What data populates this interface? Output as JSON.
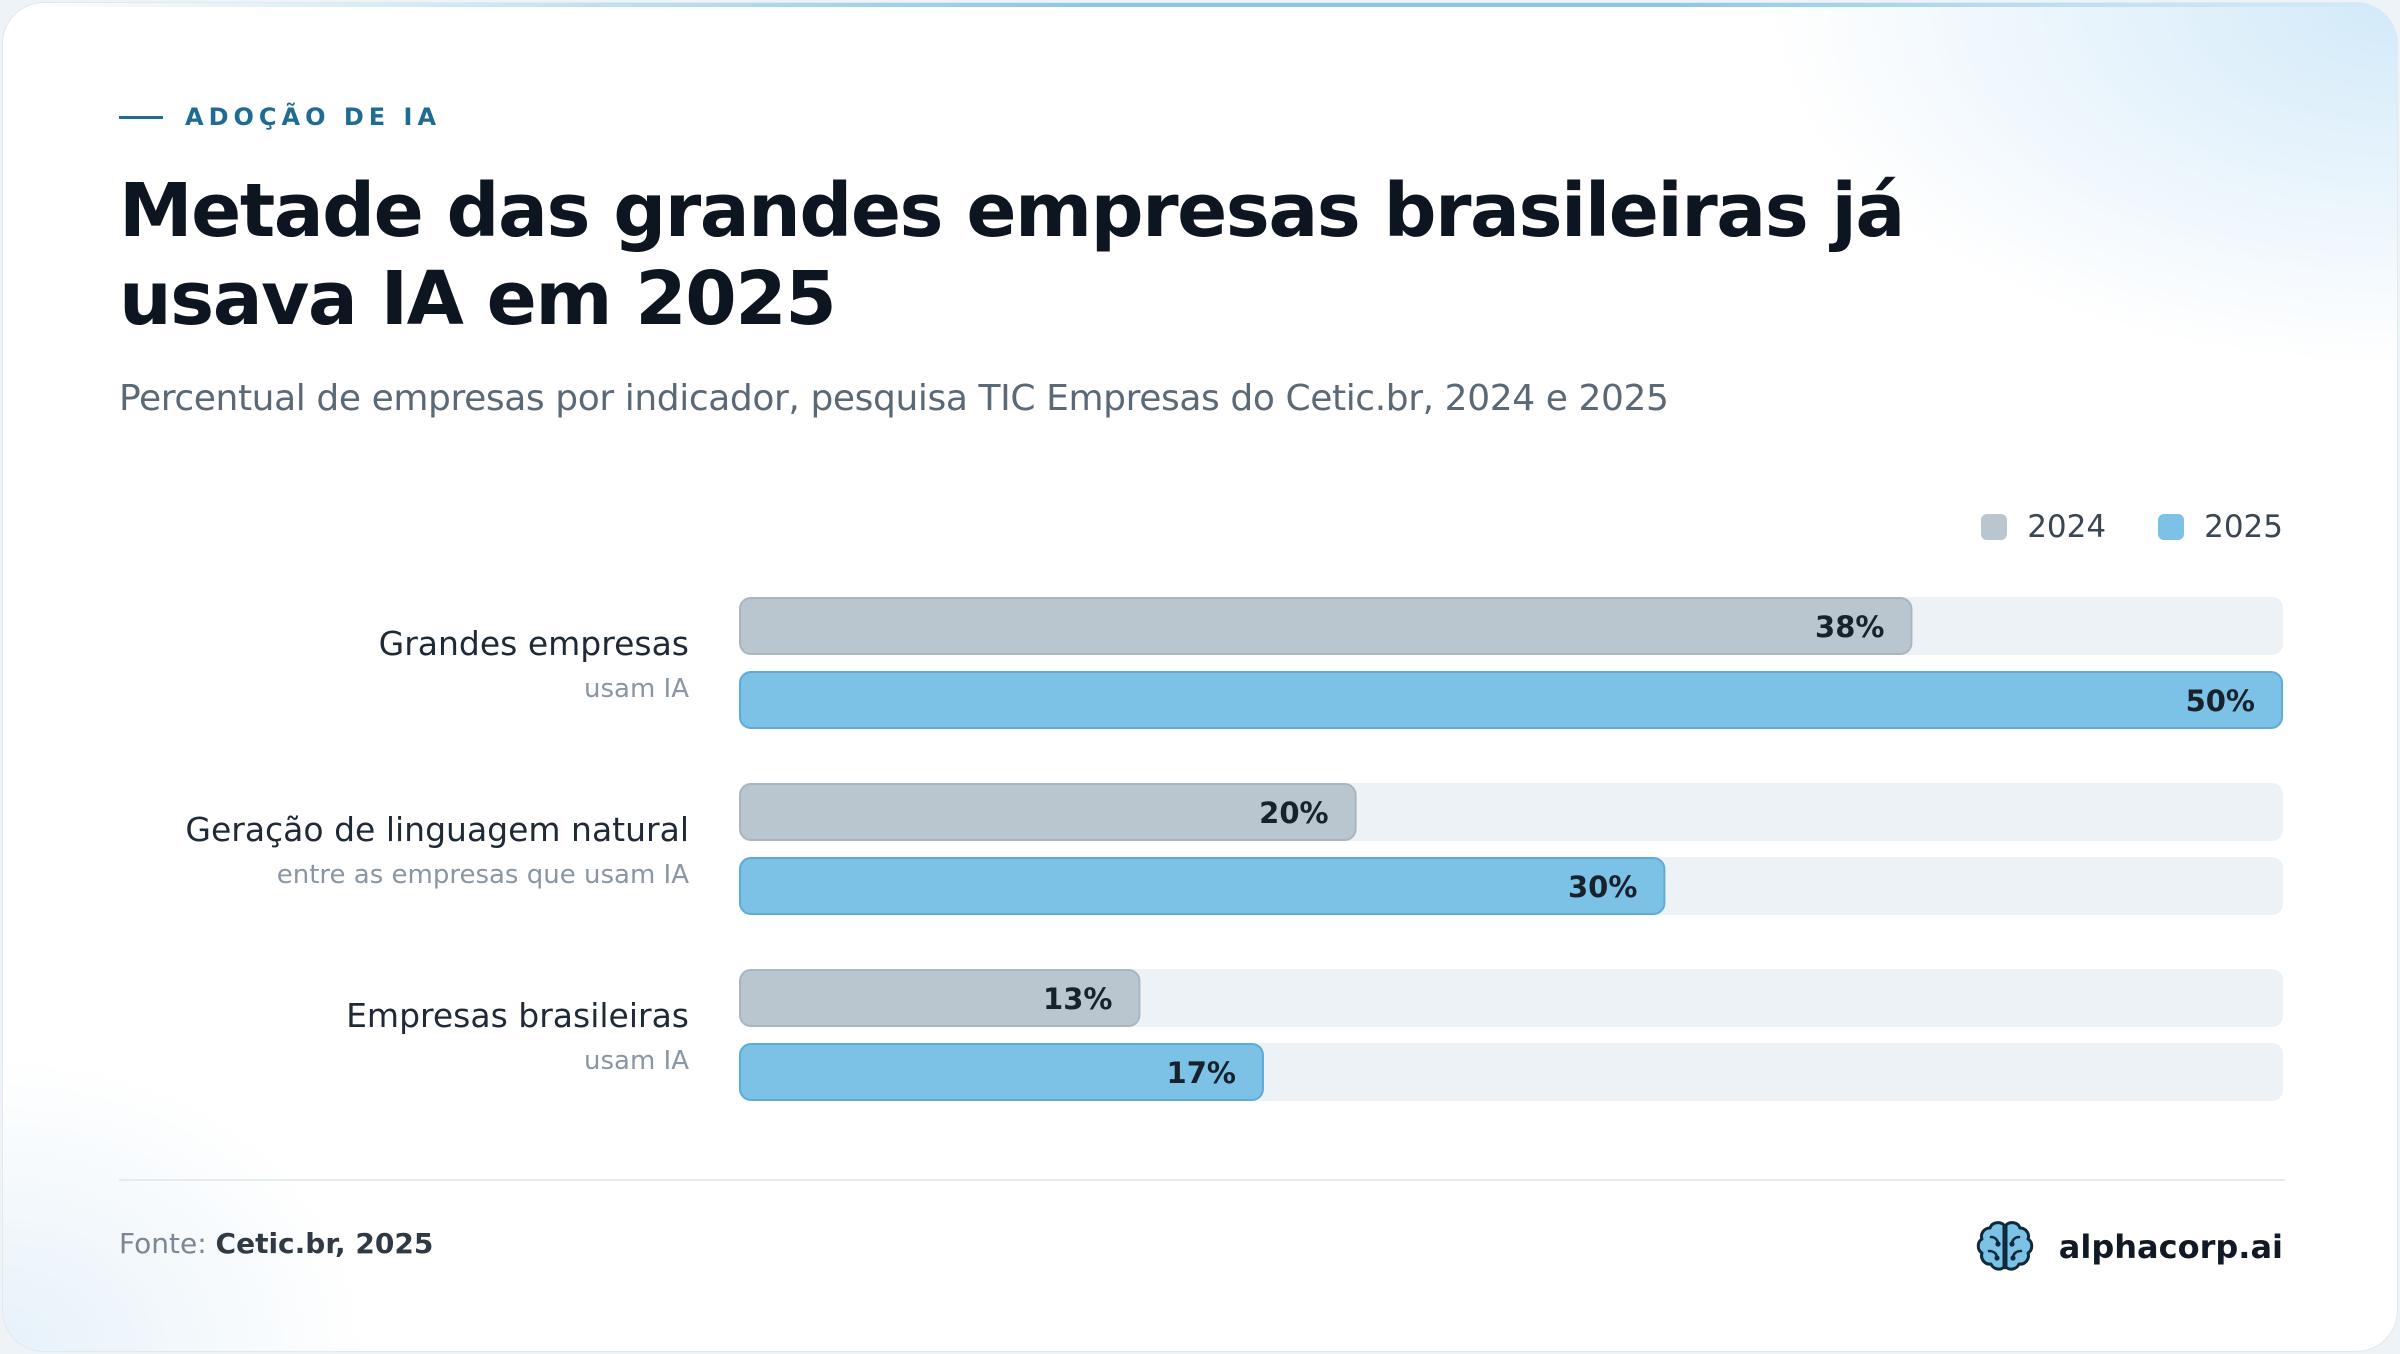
{
  "header": {
    "eyebrow": "ADOÇÃO DE IA",
    "title": "Metade das grandes empresas brasileiras já usava IA em 2025",
    "subtitle": "Percentual de empresas por indicador, pesquisa TIC Empresas do Cetic.br, 2024 e 2025"
  },
  "legend": [
    {
      "label": "2024",
      "color": "#bac6cf"
    },
    {
      "label": "2025",
      "color": "#7cc1e6"
    }
  ],
  "chart_data": {
    "type": "bar",
    "orientation": "horizontal",
    "title": "Metade das grandes empresas brasileiras já usava IA em 2025",
    "subtitle": "Percentual de empresas por indicador, pesquisa TIC Empresas do Cetic.br, 2024 e 2025",
    "categories": [
      {
        "label": "Grandes empresas",
        "sublabel": "usam IA"
      },
      {
        "label": "Geração de linguagem natural",
        "sublabel": "entre as empresas que usam IA"
      },
      {
        "label": "Empresas brasileiras",
        "sublabel": "usam IA"
      }
    ],
    "series": [
      {
        "name": "2024",
        "color": "#bac6cf",
        "values": [
          38,
          20,
          13
        ],
        "labels": [
          "38%",
          "20%",
          "13%"
        ]
      },
      {
        "name": "2025",
        "color": "#7cc1e6",
        "values": [
          50,
          30,
          17
        ],
        "labels": [
          "50%",
          "30%",
          "17%"
        ]
      }
    ],
    "xlim": [
      0,
      50
    ],
    "unit": "%",
    "legend_position": "top-right",
    "grid": false
  },
  "footer": {
    "source_prefix": "Fonte:",
    "source": "Cetic.br, 2025",
    "brand": "alphacorp.ai",
    "brand_icon": "brain-icon"
  }
}
